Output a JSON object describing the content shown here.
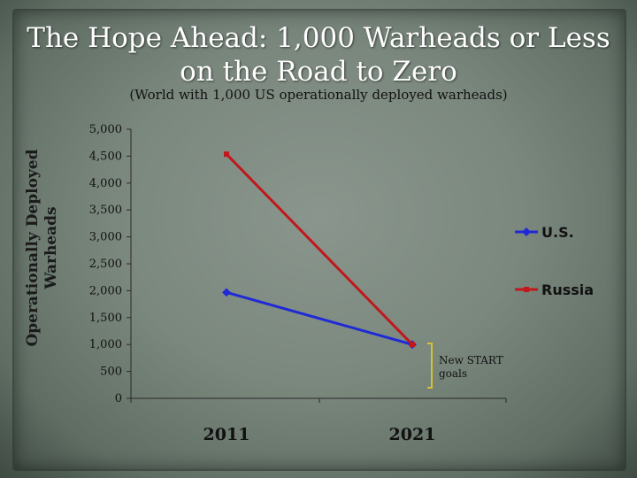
{
  "title_line1": "The Hope Ahead:  1,000  Warheads or Less",
  "title_line2": "on the Road to Zero",
  "subtitle": "(World with 1,000 US operationally deployed warheads)",
  "colors": {
    "us": "#1f2ad6",
    "russia": "#c0181c",
    "bracket": "#d8c030"
  },
  "chart_data": {
    "type": "line",
    "categories": [
      "2011",
      "2021"
    ],
    "series": [
      {
        "name": "U.S.",
        "values": [
          1968,
          1000
        ]
      },
      {
        "name": "Russia",
        "values": [
          4537,
          1000
        ]
      }
    ],
    "ylabel": "Operationally Deployed Warheads",
    "xlabel": "",
    "ylim": [
      0,
      5000
    ],
    "yticks": [
      0,
      500,
      1000,
      1500,
      2000,
      2500,
      3000,
      3500,
      4000,
      4500,
      5000
    ],
    "ytick_labels": [
      "0",
      "500",
      "1,000",
      "1,500",
      "2,000",
      "2,500",
      "3,000",
      "3,500",
      "4,000",
      "4,500",
      "5,000"
    ],
    "annotation": [
      "New START",
      "goals"
    ],
    "grid": false,
    "legend_position": "right"
  }
}
